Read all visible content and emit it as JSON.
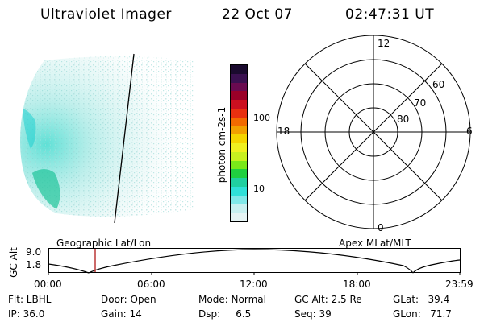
{
  "header": {
    "instrument": "Ultraviolet Imager",
    "date": "22 Oct 07",
    "time": "02:47:31 UT"
  },
  "colorbar": {
    "unit_label": "photon cm-2s-1",
    "ticks": [
      "100",
      "10"
    ],
    "colors": [
      "#1a0a2e",
      "#3a1050",
      "#6a0a50",
      "#9a0028",
      "#cc1020",
      "#e83010",
      "#f26a00",
      "#f2a000",
      "#f5d500",
      "#f0f020",
      "#c8f020",
      "#7ae81a",
      "#20d040",
      "#20d0a0",
      "#30e0d8",
      "#80e8e8",
      "#c8f0f0",
      "#e6f4f4"
    ]
  },
  "polar_plot": {
    "mlt_labels": {
      "top": "12",
      "bottom": "0",
      "left": "18",
      "right": "6"
    },
    "lat_labels": [
      "60",
      "70",
      "80"
    ]
  },
  "timeline": {
    "ylabel": "GC Alt",
    "y_ticks": [
      "9.0",
      "1.8"
    ],
    "left_title": "Geographic Lat/Lon",
    "right_title": "Apex MLat/MLT",
    "x_ticks": [
      "00:00",
      "06:00",
      "12:00",
      "18:00",
      "23:59"
    ],
    "marker_color": "#b01818"
  },
  "info": {
    "flt": "Flt: LBHL",
    "ip": "IP: 36.0",
    "door": "Door: Open",
    "gain": "Gain: 14",
    "mode": "Mode: Normal",
    "dsp": "Dsp:     6.5",
    "gcalt": "GC Alt: 2.5 Re",
    "seq": "Seq: 39",
    "glat": "GLat:   39.4",
    "glon": "GLon:   71.7"
  }
}
